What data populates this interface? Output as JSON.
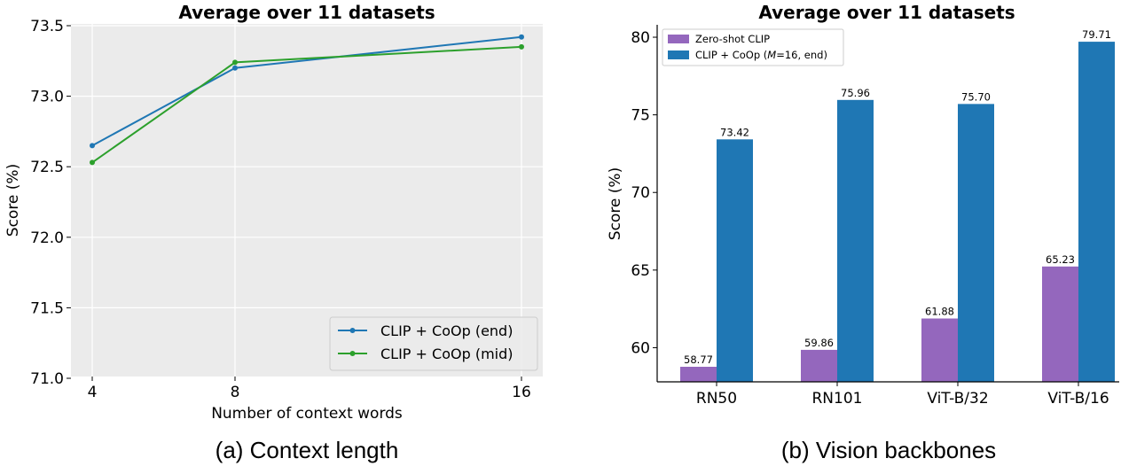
{
  "chart_data": [
    {
      "type": "line",
      "title": "Average over 11 datasets",
      "xlabel": "Number of context words",
      "ylabel": "Score (%)",
      "caption": "(a) Context length",
      "x": [
        4,
        8,
        16
      ],
      "xticks": [
        "4",
        "8",
        "16"
      ],
      "ylim": [
        71.0,
        73.5
      ],
      "yticks": [
        "71.0",
        "71.5",
        "72.0",
        "72.5",
        "73.0",
        "73.5"
      ],
      "grid": true,
      "legend_position": "bottom-right",
      "series": [
        {
          "name": "CLIP + CoOp (end)",
          "color": "#1f77b4",
          "values": [
            72.65,
            73.2,
            73.42
          ]
        },
        {
          "name": "CLIP + CoOp (mid)",
          "color": "#2ca02c",
          "values": [
            72.53,
            73.24,
            73.35
          ]
        }
      ]
    },
    {
      "type": "bar",
      "title": "Average over 11 datasets",
      "xlabel": "",
      "ylabel": "Score (%)",
      "caption": "(b) Vision backbones",
      "categories": [
        "RN50",
        "RN101",
        "ViT-B/32",
        "ViT-B/16"
      ],
      "ylim": [
        57.8,
        80.8
      ],
      "yticks": [
        "60",
        "65",
        "70",
        "75",
        "80"
      ],
      "grid": false,
      "legend_position": "top-left",
      "series": [
        {
          "name": "Zero-shot CLIP",
          "color": "#9467bd",
          "values": [
            58.77,
            59.86,
            61.88,
            65.23
          ],
          "labels": [
            "58.77",
            "59.86",
            "61.88",
            "65.23"
          ]
        },
        {
          "name": "CLIP + CoOp (M=16, end)",
          "legend_parts": [
            "CLIP + CoOp (",
            "M",
            "=16, end)"
          ],
          "color": "#1f77b4",
          "values": [
            73.42,
            75.96,
            75.7,
            79.71
          ],
          "labels": [
            "73.42",
            "75.96",
            "75.70",
            "79.71"
          ]
        }
      ]
    }
  ]
}
